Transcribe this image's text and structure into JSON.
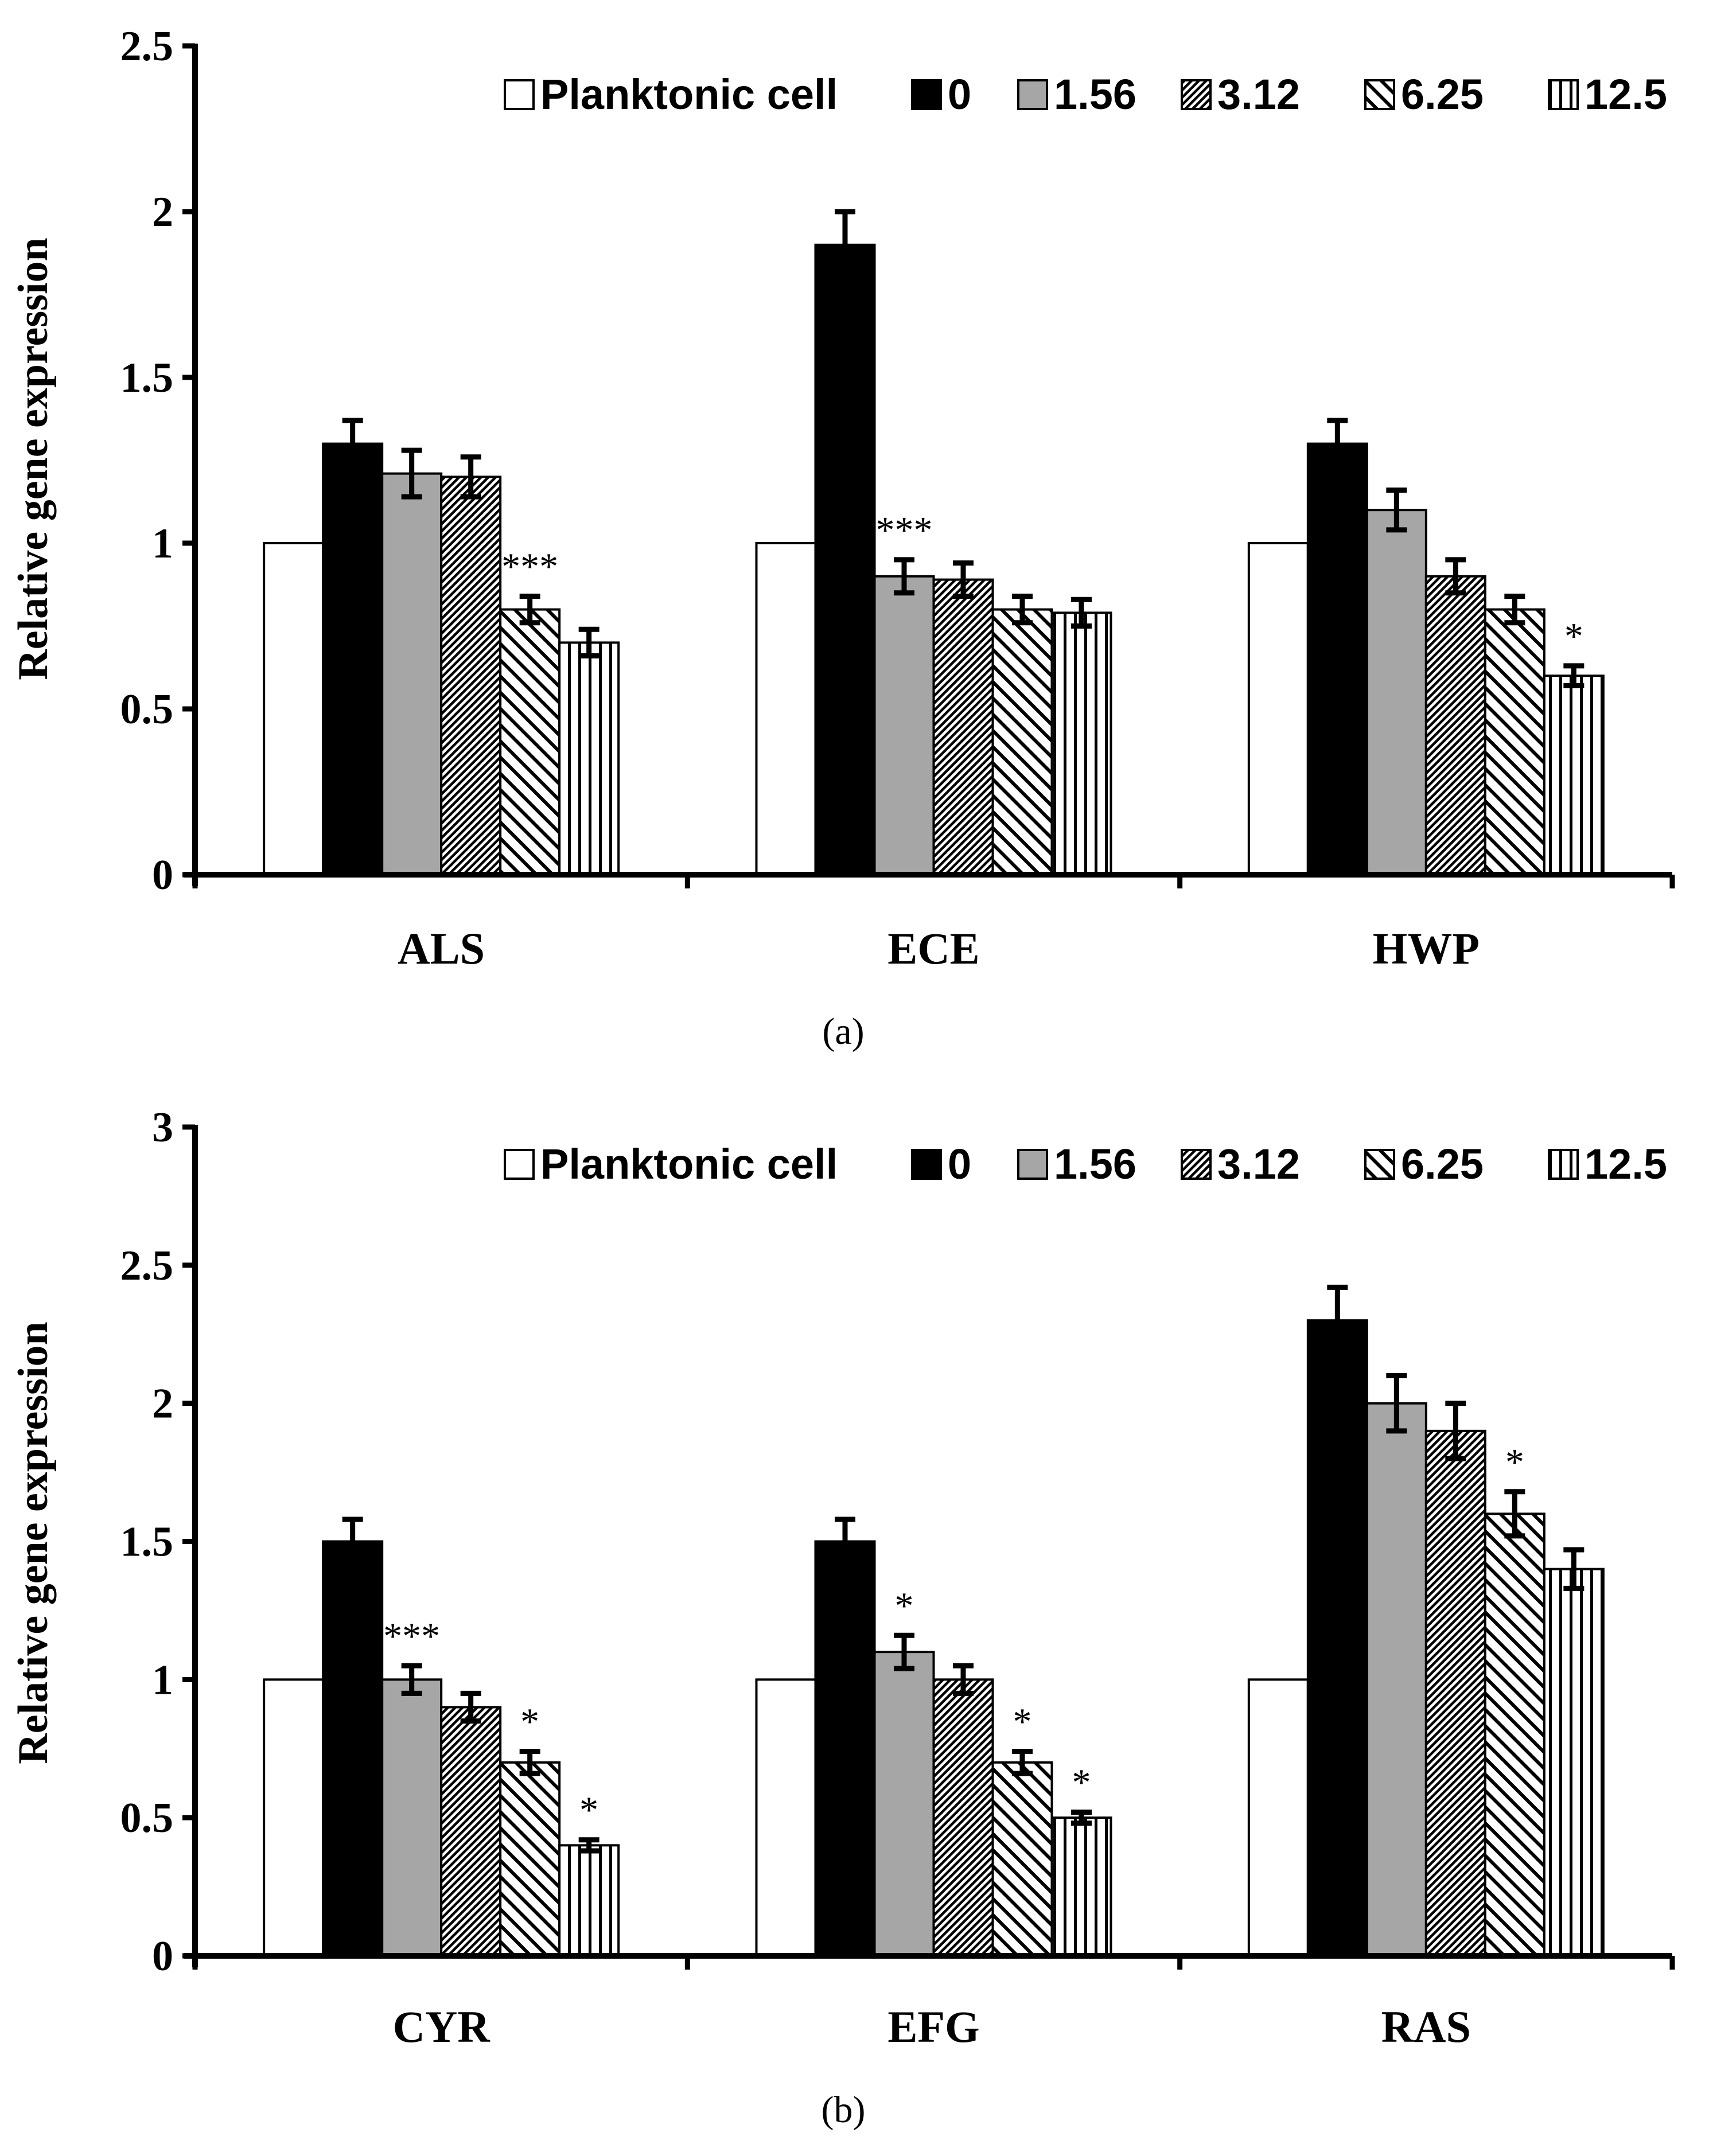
{
  "chart_data": [
    {
      "type": "bar",
      "panel_label": "(a)",
      "ylabel": "Relative gene expression",
      "xlabel": "",
      "ylim": [
        0,
        2.5
      ],
      "yticks": [
        0,
        0.5,
        1,
        1.5,
        2,
        2.5
      ],
      "ytick_labels": [
        "0",
        "0.5",
        "1",
        "1.5",
        "2",
        "2.5"
      ],
      "categories": [
        "ALS",
        "ECE",
        "HWP"
      ],
      "legend_position": "top-right",
      "series": [
        {
          "name": "Planktonic cell",
          "pattern": "white",
          "values": [
            1.0,
            1.0,
            1.0
          ],
          "errors": [
            0,
            0,
            0
          ],
          "sig": [
            "",
            "",
            ""
          ]
        },
        {
          "name": "0",
          "pattern": "black",
          "values": [
            1.3,
            1.9,
            1.3
          ],
          "errors": [
            0.07,
            0.1,
            0.07
          ],
          "sig": [
            "",
            "",
            ""
          ]
        },
        {
          "name": "1.56",
          "pattern": "gray",
          "values": [
            1.21,
            0.9,
            1.1
          ],
          "errors": [
            0.07,
            0.05,
            0.06
          ],
          "sig": [
            "",
            "***",
            ""
          ]
        },
        {
          "name": "3.12",
          "pattern": "dense-hatch",
          "values": [
            1.2,
            0.89,
            0.9
          ],
          "errors": [
            0.06,
            0.05,
            0.05
          ],
          "sig": [
            "",
            "",
            ""
          ]
        },
        {
          "name": "6.25",
          "pattern": "diag-hatch",
          "values": [
            0.8,
            0.8,
            0.8
          ],
          "errors": [
            0.04,
            0.04,
            0.04
          ],
          "sig": [
            "***",
            "",
            ""
          ]
        },
        {
          "name": "12.5",
          "pattern": "vertical",
          "values": [
            0.7,
            0.79,
            0.6
          ],
          "errors": [
            0.04,
            0.04,
            0.03
          ],
          "sig": [
            "",
            "",
            "*"
          ]
        }
      ]
    },
    {
      "type": "bar",
      "panel_label": "(b)",
      "ylabel": "Relative gene expression",
      "xlabel": "",
      "ylim": [
        0,
        3
      ],
      "yticks": [
        0,
        0.5,
        1,
        1.5,
        2,
        2.5,
        3
      ],
      "ytick_labels": [
        "0",
        "0.5",
        "1",
        "1.5",
        "2",
        "2.5",
        "3"
      ],
      "categories": [
        "CYR",
        "EFG",
        "RAS"
      ],
      "legend_position": "top-right",
      "series": [
        {
          "name": "Planktonic cell",
          "pattern": "white",
          "values": [
            1.0,
            1.0,
            1.0
          ],
          "errors": [
            0,
            0,
            0
          ],
          "sig": [
            "",
            "",
            ""
          ]
        },
        {
          "name": "0",
          "pattern": "black",
          "values": [
            1.5,
            1.5,
            2.3
          ],
          "errors": [
            0.08,
            0.08,
            0.12
          ],
          "sig": [
            "",
            "",
            ""
          ]
        },
        {
          "name": "1.56",
          "pattern": "gray",
          "values": [
            1.0,
            1.1,
            2.0
          ],
          "errors": [
            0.05,
            0.06,
            0.1
          ],
          "sig": [
            "***",
            "*",
            ""
          ]
        },
        {
          "name": "3.12",
          "pattern": "dense-hatch",
          "values": [
            0.9,
            1.0,
            1.9
          ],
          "errors": [
            0.05,
            0.05,
            0.1
          ],
          "sig": [
            "",
            "",
            ""
          ]
        },
        {
          "name": "6.25",
          "pattern": "diag-hatch",
          "values": [
            0.7,
            0.7,
            1.6
          ],
          "errors": [
            0.04,
            0.04,
            0.08
          ],
          "sig": [
            "*",
            "*",
            "*"
          ]
        },
        {
          "name": "12.5",
          "pattern": "vertical",
          "values": [
            0.4,
            0.5,
            1.4
          ],
          "errors": [
            0.02,
            0.02,
            0.07
          ],
          "sig": [
            "*",
            "*",
            ""
          ]
        }
      ]
    }
  ]
}
